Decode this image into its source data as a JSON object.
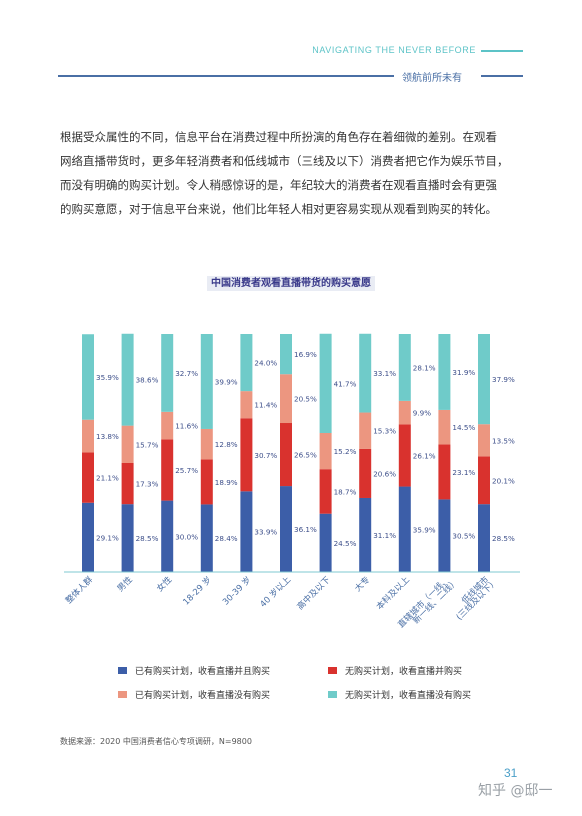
{
  "header": {
    "english": "NAVIGATING THE NEVER BEFORE",
    "chinese": "领航前所未有"
  },
  "body_text": [
    "根据受众属性的不同，信息平台在消费过程中所扮演的角色存在着细微的差别。在观看",
    "网络直播带货时，更多年轻消费者和低线城市（三线及以下）消费者把它作为娱乐节目，",
    "而没有明确的购买计划。令人稍感惊讶的是，年纪较大的消费者在观看直播时会有更强",
    "的购买意愿，对于信息平台来说，他们比年轻人相对更容易实现从观看到购买的转化。"
  ],
  "colors": {
    "s1": "#3c5ea8",
    "s2": "#d9322e",
    "s3": "#ec9680",
    "s4": "#6fcbc9"
  },
  "chart_data": {
    "type": "bar",
    "stacked": true,
    "percent_stacked": true,
    "title": "中国消费者观看直播带货的购买意愿",
    "categories": [
      "整体人群",
      "男性",
      "女性",
      "18-29 岁",
      "30-39 岁",
      "40 岁以上",
      "高中及以下",
      "大专",
      "本科及以上",
      "直辖城市（一线、新一线、二线）",
      "低线城市（三线及以下）"
    ],
    "category_lines": [
      [
        "整体人群"
      ],
      [
        "男性"
      ],
      [
        "女性"
      ],
      [
        "18-29 岁"
      ],
      [
        "30-39 岁"
      ],
      [
        "40 岁以上"
      ],
      [
        "高中及以下"
      ],
      [
        "大专"
      ],
      [
        "本科及以上"
      ],
      [
        "直辖城市（一线、",
        "新一线、二线）"
      ],
      [
        "低线城市",
        "(三线及以下）"
      ]
    ],
    "series": [
      {
        "name": "已有购买计划，收看直播并且购买",
        "values": [
          29.1,
          28.5,
          30.0,
          28.4,
          33.9,
          36.1,
          24.5,
          31.1,
          35.9,
          30.5,
          28.5
        ]
      },
      {
        "name": "无购买计划，收看直播并购买",
        "values": [
          21.1,
          17.3,
          25.7,
          18.9,
          30.7,
          26.5,
          18.7,
          20.6,
          26.1,
          23.1,
          20.1
        ]
      },
      {
        "name": "已有购买计划，收看直播没有购买",
        "values": [
          13.8,
          15.7,
          11.6,
          12.8,
          11.4,
          20.5,
          15.2,
          15.3,
          9.9,
          14.5,
          13.5
        ]
      },
      {
        "name": "无购买计划，收看直播没有购买",
        "values": [
          35.9,
          38.6,
          32.7,
          39.9,
          24.0,
          16.9,
          41.7,
          33.1,
          28.1,
          31.9,
          37.9
        ]
      }
    ],
    "ylim": [
      0,
      100
    ]
  },
  "legend": [
    "已有购买计划，收看直播并且购买",
    "无购买计划，收看直播并购买",
    "已有购买计划，收看直播没有购买",
    "无购买计划，收看直播没有购买"
  ],
  "source": "数据来源：2020 中国消费者信心专项调研，N=9800",
  "page_number": "31",
  "watermark": "知乎 @邸一"
}
